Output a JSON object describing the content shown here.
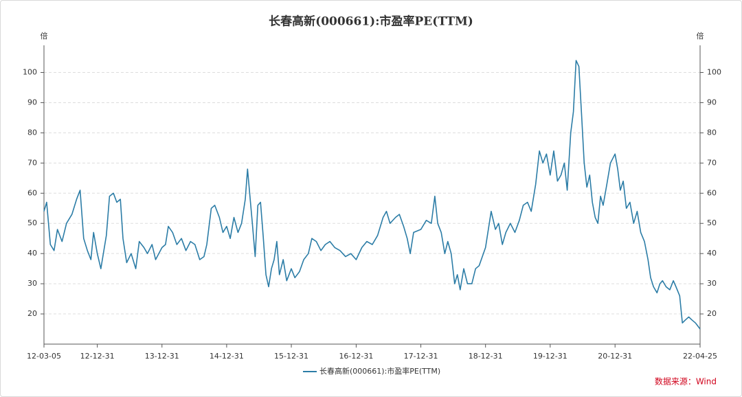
{
  "chart_data": {
    "type": "line",
    "title": "长春高新(000661):市盈率PE(TTM)",
    "y_unit": "倍",
    "y2_unit": "倍",
    "source": "数据来源：Wind",
    "xlim": [
      "12-03-05",
      "22-04-25"
    ],
    "xticks": [
      "12-03-05",
      "12-12-31",
      "13-12-31",
      "14-12-31",
      "15-12-31",
      "16-12-31",
      "17-12-31",
      "18-12-31",
      "19-12-31",
      "20-12-31",
      "22-04-25"
    ],
    "ylim": [
      10,
      109
    ],
    "yticks": [
      20,
      30,
      40,
      50,
      60,
      70,
      80,
      90,
      100
    ],
    "y2lim": [
      10,
      109
    ],
    "y2ticks": [
      20,
      30,
      40,
      50,
      60,
      70,
      80,
      90,
      100
    ],
    "grid": true,
    "legend": "bottom",
    "x": [
      "12-03-05",
      "12-03-20",
      "12-04-10",
      "12-05-01",
      "12-05-20",
      "12-06-15",
      "12-07-10",
      "12-08-10",
      "12-09-05",
      "12-09-25",
      "12-10-15",
      "12-11-05",
      "12-11-25",
      "12-12-10",
      "12-12-31",
      "13-01-20",
      "13-02-20",
      "13-03-10",
      "13-04-01",
      "13-04-20",
      "13-05-10",
      "13-05-25",
      "13-06-15",
      "13-07-10",
      "13-08-05",
      "13-08-25",
      "13-09-20",
      "13-10-10",
      "13-11-05",
      "13-11-25",
      "13-12-31",
      "14-01-20",
      "14-02-05",
      "14-03-01",
      "14-03-25",
      "14-04-20",
      "14-05-15",
      "14-06-10",
      "14-07-05",
      "14-08-01",
      "14-08-25",
      "14-09-10",
      "14-10-05",
      "14-10-25",
      "14-11-20",
      "14-12-10",
      "14-12-31",
      "15-01-20",
      "15-02-10",
      "15-03-05",
      "15-03-25",
      "15-04-15",
      "15-04-28",
      "15-05-10",
      "15-05-25",
      "15-06-10",
      "15-06-25",
      "15-07-10",
      "15-07-25",
      "15-08-10",
      "15-08-25",
      "15-09-10",
      "15-09-25",
      "15-10-10",
      "15-10-25",
      "15-11-15",
      "15-12-05",
      "15-12-31",
      "16-01-20",
      "16-02-15",
      "16-03-10",
      "16-04-05",
      "16-04-25",
      "16-05-20",
      "16-06-15",
      "16-07-10",
      "16-08-05",
      "16-09-01",
      "16-10-01",
      "16-11-01",
      "16-12-01",
      "16-12-31",
      "17-02-01",
      "17-03-01",
      "17-04-01",
      "17-05-01",
      "17-06-01",
      "17-06-20",
      "17-07-10",
      "17-08-10",
      "17-09-01",
      "17-09-25",
      "17-10-15",
      "17-11-01",
      "17-11-20",
      "17-12-31",
      "18-01-31",
      "18-02-28",
      "18-03-20",
      "18-04-05",
      "18-04-25",
      "18-05-15",
      "18-06-01",
      "18-06-20",
      "18-07-10",
      "18-07-25",
      "18-08-10",
      "18-08-30",
      "18-09-20",
      "18-10-15",
      "18-11-05",
      "18-11-25",
      "18-12-31",
      "19-02-01",
      "19-02-25",
      "19-03-15",
      "19-04-05",
      "19-04-25",
      "19-05-20",
      "19-06-15",
      "19-07-10",
      "19-08-01",
      "19-08-25",
      "19-09-15",
      "19-10-10",
      "19-10-31",
      "19-11-20",
      "19-12-10",
      "19-12-31",
      "20-01-20",
      "20-02-10",
      "20-03-01",
      "20-03-20",
      "20-04-05",
      "20-04-25",
      "20-05-10",
      "20-05-25",
      "20-06-10",
      "20-06-25",
      "20-07-10",
      "20-07-25",
      "20-08-10",
      "20-08-25",
      "20-09-10",
      "20-09-25",
      "20-10-10",
      "20-10-25",
      "20-11-15",
      "20-12-05",
      "20-12-31",
      "21-01-15",
      "21-01-30",
      "21-02-15",
      "21-03-05",
      "21-03-25",
      "21-04-15",
      "21-05-05",
      "21-05-25",
      "21-06-15",
      "21-07-05",
      "21-07-20",
      "21-08-05",
      "21-08-25",
      "21-09-10",
      "21-09-25",
      "21-10-15",
      "21-11-05",
      "21-11-25",
      "21-12-10",
      "21-12-31",
      "22-01-15",
      "22-02-01",
      "22-02-20",
      "22-03-10",
      "22-03-30",
      "22-04-25"
    ],
    "series": [
      {
        "name": "长春高新(000661):市盈率PE(TTM)",
        "color": "#2b7ca6",
        "values": [
          54,
          57,
          43,
          41,
          48,
          44,
          50,
          53,
          58,
          61,
          45,
          41,
          38,
          47,
          40,
          35,
          46,
          59,
          60,
          57,
          58,
          45,
          37,
          40,
          35,
          44,
          42,
          40,
          43,
          38,
          42,
          43,
          49,
          47,
          43,
          45,
          41,
          44,
          43,
          38,
          39,
          43,
          55,
          56,
          52,
          47,
          49,
          45,
          52,
          47,
          50,
          58,
          68,
          60,
          50,
          39,
          56,
          57,
          46,
          33,
          29,
          35,
          38,
          44,
          33,
          38,
          31,
          35,
          32,
          34,
          38,
          40,
          45,
          44,
          41,
          43,
          44,
          42,
          41,
          39,
          40,
          38,
          42,
          44,
          43,
          46,
          52,
          54,
          50,
          52,
          53,
          49,
          45,
          40,
          47,
          48,
          51,
          50,
          59,
          50,
          47,
          40,
          44,
          40,
          30,
          33,
          28,
          35,
          30,
          30,
          35,
          36,
          42,
          54,
          48,
          50,
          43,
          47,
          50,
          47,
          51,
          56,
          57,
          54,
          63,
          74,
          70,
          73,
          66,
          74,
          64,
          66,
          70,
          61,
          80,
          87,
          104,
          102,
          86,
          70,
          62,
          66,
          57,
          52,
          50,
          59,
          56,
          63,
          70,
          73,
          68,
          61,
          64,
          55,
          57,
          50,
          54,
          47,
          44,
          38,
          32,
          29,
          27,
          30,
          31,
          29,
          28,
          31,
          29,
          26,
          17,
          18,
          19,
          18,
          17,
          15
        ]
      }
    ]
  }
}
